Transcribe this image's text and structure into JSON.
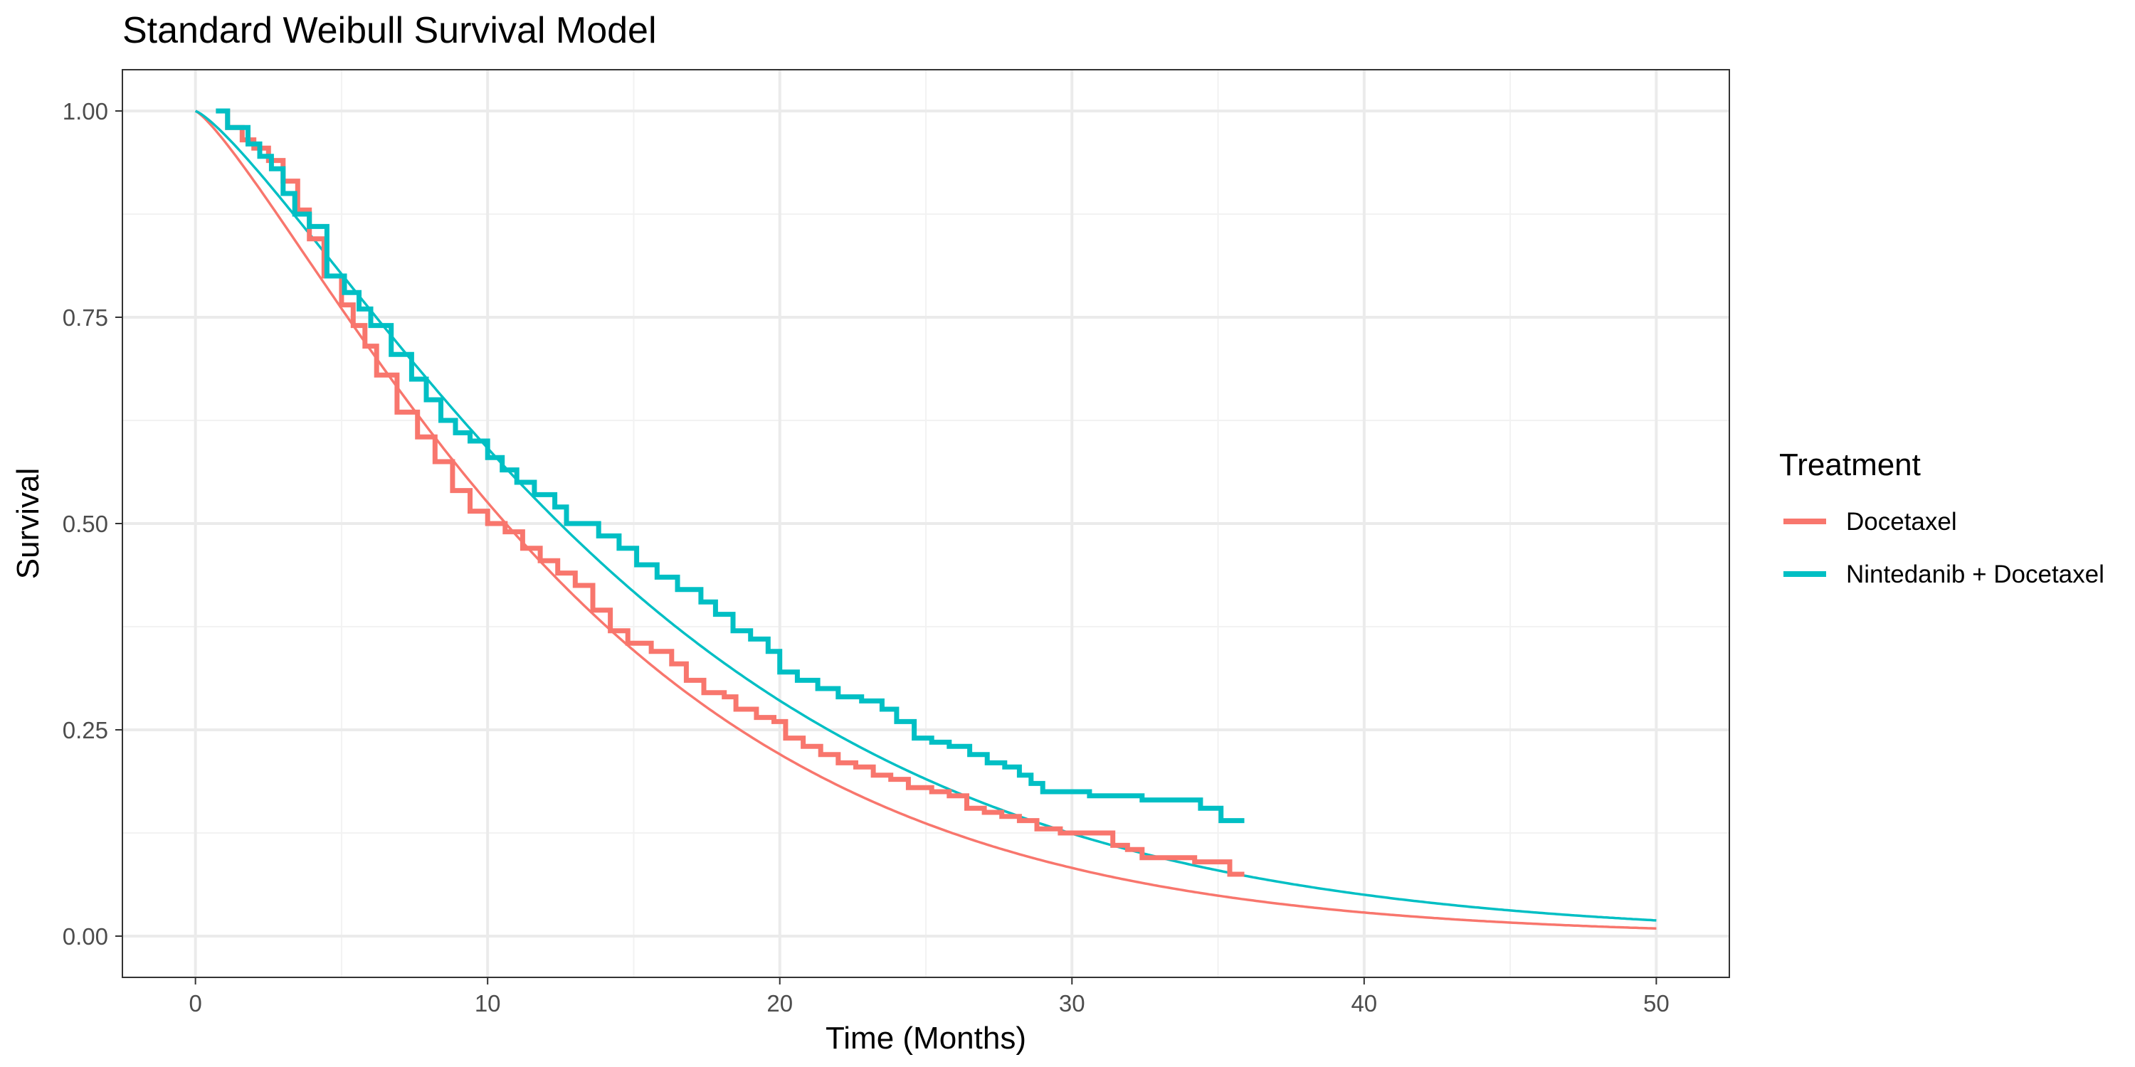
{
  "chart_data": {
    "type": "line",
    "title": "Standard Weibull Survival Model",
    "xlabel": "Time (Months)",
    "ylabel": "Survival",
    "xlim": [
      -2.5,
      52.5
    ],
    "ylim": [
      -0.05,
      1.05
    ],
    "x_ticks": [
      0,
      10,
      20,
      30,
      40,
      50
    ],
    "x_tick_labels": [
      "0",
      "10",
      "20",
      "30",
      "40",
      "50"
    ],
    "y_ticks": [
      0,
      0.25,
      0.5,
      0.75,
      1
    ],
    "y_tick_labels": [
      "0.00",
      "0.25",
      "0.50",
      "0.75",
      "1.00"
    ],
    "grid": true,
    "legend": {
      "title": "Treatment",
      "position": "right",
      "entries": [
        "Docetaxel",
        "Nintedanib + Docetaxel"
      ]
    },
    "colors": {
      "Docetaxel": "#F8766D",
      "Nintedanib + Docetaxel": "#00BFC4"
    },
    "km_curves": [
      {
        "name": "Docetaxel",
        "color": "#F8766D",
        "steps": [
          [
            0.7,
            1.0
          ],
          [
            1.1,
            0.98
          ],
          [
            1.6,
            0.965
          ],
          [
            2.0,
            0.955
          ],
          [
            2.5,
            0.94
          ],
          [
            3.0,
            0.915
          ],
          [
            3.5,
            0.88
          ],
          [
            3.9,
            0.845
          ],
          [
            4.4,
            0.8
          ],
          [
            5.0,
            0.765
          ],
          [
            5.4,
            0.74
          ],
          [
            5.8,
            0.715
          ],
          [
            6.2,
            0.68
          ],
          [
            6.9,
            0.635
          ],
          [
            7.6,
            0.605
          ],
          [
            8.2,
            0.575
          ],
          [
            8.8,
            0.54
          ],
          [
            9.4,
            0.515
          ],
          [
            10.0,
            0.5
          ],
          [
            10.6,
            0.49
          ],
          [
            11.2,
            0.47
          ],
          [
            11.8,
            0.455
          ],
          [
            12.4,
            0.44
          ],
          [
            13.0,
            0.425
          ],
          [
            13.6,
            0.395
          ],
          [
            14.2,
            0.37
          ],
          [
            14.8,
            0.355
          ],
          [
            15.6,
            0.345
          ],
          [
            16.3,
            0.33
          ],
          [
            16.8,
            0.31
          ],
          [
            17.4,
            0.295
          ],
          [
            18.1,
            0.29
          ],
          [
            18.5,
            0.275
          ],
          [
            19.2,
            0.265
          ],
          [
            19.8,
            0.26
          ],
          [
            20.2,
            0.24
          ],
          [
            20.8,
            0.23
          ],
          [
            21.4,
            0.22
          ],
          [
            22.0,
            0.21
          ],
          [
            22.6,
            0.205
          ],
          [
            23.2,
            0.195
          ],
          [
            23.8,
            0.19
          ],
          [
            24.4,
            0.18
          ],
          [
            25.2,
            0.175
          ],
          [
            25.8,
            0.17
          ],
          [
            26.4,
            0.155
          ],
          [
            27.0,
            0.15
          ],
          [
            27.6,
            0.145
          ],
          [
            28.2,
            0.14
          ],
          [
            28.8,
            0.13
          ],
          [
            29.6,
            0.125
          ],
          [
            31.4,
            0.11
          ],
          [
            31.9,
            0.105
          ],
          [
            32.4,
            0.095
          ],
          [
            34.2,
            0.09
          ],
          [
            35.4,
            0.075
          ],
          [
            35.9,
            0.075
          ]
        ]
      },
      {
        "name": "Nintedanib + Docetaxel",
        "color": "#00BFC4",
        "steps": [
          [
            0.7,
            1.0
          ],
          [
            1.1,
            0.98
          ],
          [
            1.8,
            0.96
          ],
          [
            2.2,
            0.945
          ],
          [
            2.6,
            0.93
          ],
          [
            3.0,
            0.9
          ],
          [
            3.4,
            0.875
          ],
          [
            3.9,
            0.86
          ],
          [
            4.5,
            0.84
          ],
          [
            4.5,
            0.8
          ],
          [
            5.1,
            0.78
          ],
          [
            5.6,
            0.76
          ],
          [
            6.0,
            0.74
          ],
          [
            6.7,
            0.705
          ],
          [
            7.4,
            0.675
          ],
          [
            7.9,
            0.65
          ],
          [
            8.4,
            0.625
          ],
          [
            8.9,
            0.61
          ],
          [
            9.4,
            0.6
          ],
          [
            10.0,
            0.58
          ],
          [
            10.5,
            0.565
          ],
          [
            11.0,
            0.55
          ],
          [
            11.6,
            0.535
          ],
          [
            12.3,
            0.52
          ],
          [
            12.7,
            0.5
          ],
          [
            13.8,
            0.485
          ],
          [
            14.5,
            0.47
          ],
          [
            15.1,
            0.45
          ],
          [
            15.8,
            0.435
          ],
          [
            16.5,
            0.42
          ],
          [
            17.3,
            0.405
          ],
          [
            17.8,
            0.39
          ],
          [
            18.4,
            0.37
          ],
          [
            19.0,
            0.36
          ],
          [
            19.6,
            0.345
          ],
          [
            20.0,
            0.32
          ],
          [
            20.6,
            0.31
          ],
          [
            21.3,
            0.3
          ],
          [
            22.0,
            0.29
          ],
          [
            22.8,
            0.285
          ],
          [
            23.5,
            0.275
          ],
          [
            24.0,
            0.26
          ],
          [
            24.6,
            0.24
          ],
          [
            25.2,
            0.235
          ],
          [
            25.8,
            0.23
          ],
          [
            26.5,
            0.22
          ],
          [
            27.1,
            0.21
          ],
          [
            27.7,
            0.205
          ],
          [
            28.2,
            0.195
          ],
          [
            28.6,
            0.185
          ],
          [
            29.0,
            0.175
          ],
          [
            30.6,
            0.17
          ],
          [
            32.4,
            0.165
          ],
          [
            34.4,
            0.155
          ],
          [
            35.1,
            0.14
          ],
          [
            35.9,
            0.14
          ]
        ]
      }
    ],
    "weibull_fits": [
      {
        "name": "Docetaxel",
        "color": "#F8766D",
        "scale": 14.3,
        "shape": 1.233
      },
      {
        "name": "Nintedanib + Docetaxel",
        "color": "#00BFC4",
        "scale": 16.7,
        "shape": 1.255
      }
    ]
  }
}
